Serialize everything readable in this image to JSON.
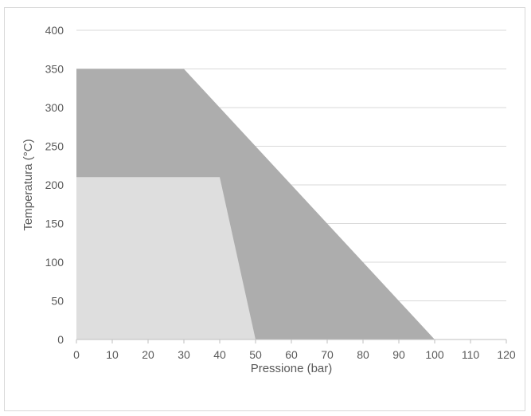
{
  "chart_data": {
    "type": "area",
    "title": "",
    "xlabel": "Pressione (bar)",
    "ylabel": "Temperatura (°C)",
    "xlim": [
      0,
      120
    ],
    "ylim": [
      0,
      400
    ],
    "x_ticks": [
      0,
      10,
      20,
      30,
      40,
      50,
      60,
      70,
      80,
      90,
      100,
      110,
      120
    ],
    "y_ticks": [
      0,
      50,
      100,
      150,
      200,
      250,
      300,
      350,
      400
    ],
    "grid": "horizontal",
    "legend": "none",
    "series": [
      {
        "color": "#adadad",
        "points": [
          [
            0,
            0
          ],
          [
            0,
            350
          ],
          [
            30,
            350
          ],
          [
            100,
            0
          ]
        ]
      },
      {
        "color": "#dedede",
        "points": [
          [
            0,
            0
          ],
          [
            0,
            210
          ],
          [
            40,
            210
          ],
          [
            50,
            0
          ]
        ]
      }
    ]
  },
  "colors": {
    "gridline": "#d9d9d9",
    "axis": "#bfbfbf",
    "text": "#595959"
  }
}
